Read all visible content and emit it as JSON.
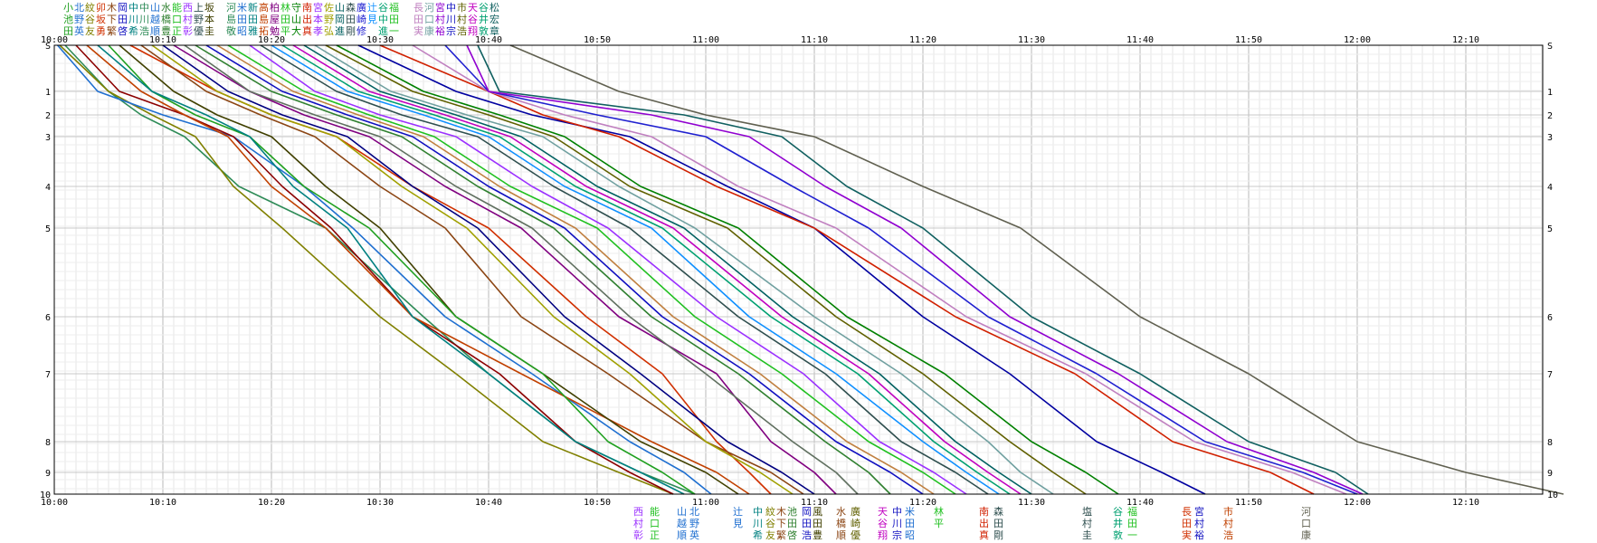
{
  "chart_data": {
    "type": "line",
    "title": "",
    "xlabel": "",
    "ylabel": "",
    "x_ticks": [
      "10:00",
      "10:10",
      "10:20",
      "10:30",
      "10:40",
      "10:50",
      "11:00",
      "11:10",
      "11:20",
      "11:30",
      "11:40",
      "11:50",
      "12:00",
      "12:10"
    ],
    "y_ticks": [
      "S",
      "1",
      "2",
      "3",
      "4",
      "5",
      "6",
      "7",
      "8",
      "9",
      "10"
    ],
    "xlim_minutes": [
      0,
      138
    ],
    "y_checkpoints_km": [
      0,
      1,
      2,
      3,
      4,
      5,
      6,
      7,
      8,
      9,
      10
    ],
    "y_scale": "nonuniform",
    "grid": true,
    "x_unit": "minutes after 10:00",
    "series": [
      {
        "color": "#2e8b57",
        "values": [
          1,
          5,
          8,
          12,
          17,
          25,
          34,
          40,
          48,
          54,
          59
        ]
      },
      {
        "color": "#808000",
        "values": [
          0.5,
          5,
          9,
          13,
          16.5,
          21,
          30,
          37,
          45,
          52,
          57
        ]
      },
      {
        "color": "#1f6fd0",
        "values": [
          0.3,
          4,
          10,
          16.5,
          23,
          27.5,
          36,
          44,
          53,
          58,
          60.5
        ]
      },
      {
        "color": "#8b0000",
        "values": [
          2,
          6,
          12,
          16.5,
          21,
          25.5,
          33,
          41,
          48,
          53,
          57
        ]
      },
      {
        "color": "#c04000",
        "values": [
          3,
          8,
          12,
          16,
          20,
          25,
          33,
          43,
          55,
          61,
          64
        ]
      },
      {
        "color": "#404000",
        "values": [
          6,
          11,
          15,
          20,
          25,
          30,
          37,
          45,
          54,
          60,
          63
        ]
      },
      {
        "color": "#20a020",
        "values": [
          5,
          9,
          13,
          18,
          23,
          29,
          37,
          45,
          51,
          56,
          59
        ]
      },
      {
        "color": "#008080",
        "values": [
          4,
          9,
          14,
          18,
          22,
          27,
          33,
          40,
          48,
          54,
          58
        ]
      },
      {
        "color": "#d03000",
        "values": [
          7,
          15,
          20,
          26,
          33,
          40,
          49,
          56,
          61,
          64,
          66
        ]
      },
      {
        "color": "#8b4513",
        "values": [
          8,
          14,
          19,
          24,
          30,
          36,
          43,
          51,
          60,
          66,
          69
        ]
      },
      {
        "color": "#a0a000",
        "values": [
          9,
          15,
          20,
          26,
          32,
          38,
          46,
          53,
          60,
          65,
          68
        ]
      },
      {
        "color": "#000080",
        "values": [
          10,
          16,
          21,
          27,
          33,
          39,
          47,
          54,
          62,
          67,
          70
        ]
      },
      {
        "color": "#800080",
        "values": [
          11,
          18,
          23,
          29,
          36,
          43,
          52,
          61,
          66,
          70,
          72
        ]
      },
      {
        "color": "#607060",
        "values": [
          12,
          18,
          24,
          30,
          37,
          44,
          53,
          60,
          68,
          72,
          74
        ]
      },
      {
        "color": "#308030",
        "values": [
          13,
          20,
          26,
          32,
          39,
          46,
          55,
          63,
          71,
          75,
          77
        ]
      },
      {
        "color": "#1010c0",
        "values": [
          14,
          21,
          27,
          33,
          40,
          47,
          56,
          64,
          72,
          77,
          80
        ]
      },
      {
        "color": "#c08040",
        "values": [
          15,
          22,
          28,
          34,
          41,
          48,
          57,
          65,
          73,
          78,
          81
        ]
      },
      {
        "color": "#20c020",
        "values": [
          16,
          23,
          29,
          35,
          42,
          50,
          59,
          67,
          75,
          80,
          83
        ]
      },
      {
        "color": "#9b30ff",
        "values": [
          18,
          24,
          30,
          37,
          44,
          51,
          61,
          69,
          76,
          81,
          84
        ]
      },
      {
        "color": "#2f4f4f",
        "values": [
          19,
          26,
          32,
          39,
          46,
          53,
          63,
          71,
          78,
          83,
          86
        ]
      },
      {
        "color": "#1090ff",
        "values": [
          20,
          27,
          34,
          40,
          47,
          55,
          64,
          72,
          80,
          84,
          87
        ]
      },
      {
        "color": "#00a070",
        "values": [
          21,
          28,
          35,
          41,
          48,
          56,
          66,
          74,
          81,
          85,
          88
        ]
      },
      {
        "color": "#c000c0",
        "values": [
          22,
          29,
          36,
          42,
          49,
          57,
          67,
          75,
          82,
          86,
          89
        ]
      },
      {
        "color": "#006060",
        "values": [
          23,
          30,
          37,
          43,
          50,
          58,
          68,
          76,
          83,
          87,
          90
        ]
      },
      {
        "color": "#70a0a0",
        "values": [
          24,
          31,
          38,
          45,
          52,
          59,
          70,
          78,
          86,
          89,
          92
        ]
      },
      {
        "color": "#606000",
        "values": [
          25,
          33,
          40,
          46,
          53,
          62,
          72,
          80,
          88,
          92,
          95
        ]
      },
      {
        "color": "#008000",
        "values": [
          26,
          34,
          41,
          47,
          54,
          63,
          73,
          82,
          90,
          95,
          98
        ]
      },
      {
        "color": "#0000a0",
        "values": [
          28,
          37,
          44,
          53,
          62,
          70,
          80,
          88,
          96,
          102,
          106
        ]
      },
      {
        "color": "#d02000",
        "values": [
          30,
          40,
          45,
          52,
          61,
          70,
          83,
          94,
          103,
          112,
          116
        ]
      },
      {
        "color": "#c080c0",
        "values": [
          33,
          40,
          47,
          55,
          63,
          72,
          84,
          95,
          105,
          114,
          119
        ]
      },
      {
        "color": "#2020d0",
        "values": [
          36,
          40,
          50,
          60,
          68,
          75,
          86,
          96,
          106,
          115,
          120
        ]
      },
      {
        "color": "#9000d0",
        "values": [
          38,
          40,
          55,
          64,
          71,
          78,
          88,
          98,
          108,
          116,
          120.5
        ]
      },
      {
        "color": "#106060",
        "values": [
          39,
          41,
          58,
          67,
          73,
          80,
          90,
          100,
          110,
          118,
          121
        ]
      },
      {
        "color": "#606050",
        "values": [
          42,
          52,
          60,
          70,
          80,
          89,
          100,
          110,
          120,
          130,
          139
        ]
      }
    ],
    "top_names": [
      [
        {
          "text": "小池田",
          "color": "#20a020"
        },
        {
          "text": "北野英",
          "color": "#1f6fd0"
        },
        {
          "text": "紋谷友",
          "color": "#808000"
        },
        {
          "text": "卯坂勇",
          "color": "#d03000"
        },
        {
          "text": "木下繁",
          "color": "#8b4513"
        },
        {
          "text": "岡田啓",
          "color": "#1010c0"
        },
        {
          "text": "中川希",
          "color": "#008080"
        },
        {
          "text": "中川浩",
          "color": "#2e8b57"
        },
        {
          "text": "山越順",
          "color": "#1f6fd0"
        },
        {
          "text": "水橋豊",
          "color": "#308030"
        },
        {
          "text": "能口正",
          "color": "#20c020"
        },
        {
          "text": "西村彰",
          "color": "#9b30ff"
        },
        {
          "text": "上野優",
          "color": "#2f4f4f"
        },
        {
          "text": "坂本圭",
          "color": "#404000"
        }
      ],
      [
        {
          "text": "河島敬",
          "color": "#2e8b57"
        },
        {
          "text": "米田昭",
          "color": "#1f6fd0"
        },
        {
          "text": "新田雅",
          "color": "#008080"
        },
        {
          "text": "高島拓",
          "color": "#c04000"
        },
        {
          "text": "柏屋勉",
          "color": "#800080"
        },
        {
          "text": "林田平",
          "color": "#20c020"
        },
        {
          "text": "守山大",
          "color": "#008000"
        },
        {
          "text": "南出真",
          "color": "#d02000"
        },
        {
          "text": "宮本孝",
          "color": "#9b30ff"
        },
        {
          "text": "佐野弘",
          "color": "#a0a000"
        },
        {
          "text": "山岡進",
          "color": "#006060"
        },
        {
          "text": "森田剛",
          "color": "#2f4f4f"
        },
        {
          "text": "廣崎修",
          "color": "#2020d0"
        },
        {
          "text": "辻見",
          "color": "#1090ff"
        },
        {
          "text": "谷中進",
          "color": "#00a070"
        },
        {
          "text": "福田一",
          "color": "#20c020"
        }
      ],
      [
        {
          "text": "長田実",
          "color": "#c080c0"
        },
        {
          "text": "河口康",
          "color": "#70a0a0"
        },
        {
          "text": "宮村裕",
          "color": "#9000d0"
        },
        {
          "text": "中川宗",
          "color": "#1010c0"
        },
        {
          "text": "市村浩",
          "color": "#606000"
        },
        {
          "text": "天谷翔",
          "color": "#c000c0"
        },
        {
          "text": "谷井敦",
          "color": "#00a070"
        },
        {
          "text": "松宏章",
          "color": "#106060"
        }
      ]
    ],
    "bottom_names": [
      {
        "text": "西村彰",
        "color": "#9b30ff"
      },
      {
        "text": "能口正",
        "color": "#20c020"
      },
      {
        "text": "山越順",
        "color": "#1f6fd0"
      },
      {
        "text": "北野英",
        "color": "#1f6fd0"
      },
      {
        "text": "辻見",
        "color": "#1f6fd0"
      },
      {
        "text": "中川希",
        "color": "#008080"
      },
      {
        "text": "紋谷友",
        "color": "#808000"
      },
      {
        "text": "木下繁",
        "color": "#8b4513"
      },
      {
        "text": "池田啓",
        "color": "#308030"
      },
      {
        "text": "岡田浩",
        "color": "#1010c0"
      },
      {
        "text": "風田豊",
        "color": "#404000"
      },
      {
        "text": "水橋順",
        "color": "#8b4513"
      },
      {
        "text": "廣崎優",
        "color": "#606000"
      },
      {
        "text": "天谷翔",
        "color": "#c000c0"
      },
      {
        "text": "中川宗",
        "color": "#1010c0"
      },
      {
        "text": "米田昭",
        "color": "#1f6fd0"
      },
      {
        "text": "林平",
        "color": "#20c020"
      },
      {
        "text": "南出真",
        "color": "#d02000"
      },
      {
        "text": "森田剛",
        "color": "#2f4f4f"
      },
      {
        "text": "塩村圭",
        "color": "#2f4f4f"
      },
      {
        "text": "谷井敦",
        "color": "#00a070"
      },
      {
        "text": "福田一",
        "color": "#20c020"
      },
      {
        "text": "長田実",
        "color": "#d03000"
      },
      {
        "text": "宮村裕",
        "color": "#1010c0"
      },
      {
        "text": "市村浩",
        "color": "#c04000"
      },
      {
        "text": "河口康",
        "color": "#606050"
      }
    ]
  }
}
